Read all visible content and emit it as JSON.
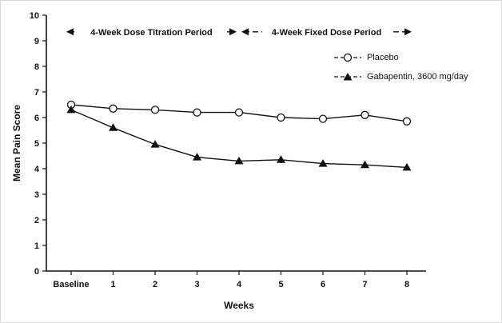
{
  "chart_data": {
    "type": "line",
    "title": "",
    "xlabel": "Weeks",
    "ylabel": "Mean Pain Score",
    "ylim": [
      0,
      10
    ],
    "yticks": [
      0,
      1,
      2,
      3,
      4,
      5,
      6,
      7,
      8,
      9,
      10
    ],
    "grid": false,
    "legend_position": "top-right-inside",
    "categories": [
      "Baseline",
      "1",
      "2",
      "3",
      "4",
      "5",
      "6",
      "7",
      "8"
    ],
    "series": [
      {
        "name": "Placebo",
        "marker": "open-circle",
        "color": "#111111",
        "values": [
          6.5,
          6.35,
          6.3,
          6.2,
          6.2,
          6.0,
          5.95,
          6.1,
          5.85
        ]
      },
      {
        "name": "Gabapentin, 3600 mg/day",
        "marker": "filled-triangle",
        "color": "#111111",
        "values": [
          6.3,
          5.6,
          4.95,
          4.45,
          4.3,
          4.35,
          4.2,
          4.15,
          4.05
        ]
      }
    ],
    "annotations": [
      {
        "label": "4-Week Dose Titration Period",
        "from_category": 0,
        "to_category": 4,
        "y": 9.35
      },
      {
        "label": "4-Week Fixed Dose Period",
        "from_category": 4,
        "to_category": 8,
        "y": 9.35
      }
    ],
    "colors": {
      "line": "#111111",
      "background": "#ffffff",
      "border": "#d9d9d9"
    }
  }
}
